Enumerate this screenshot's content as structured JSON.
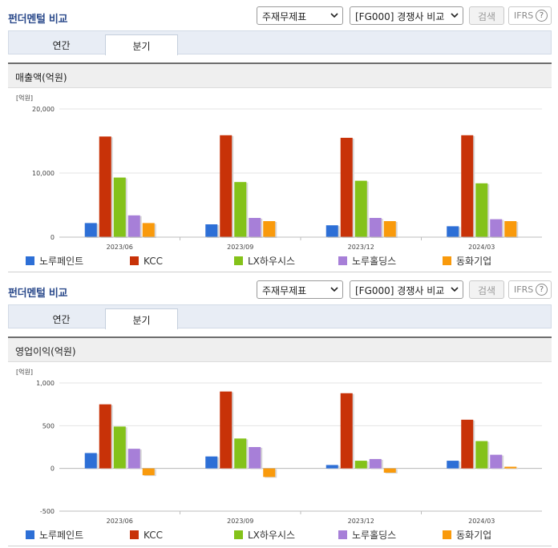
{
  "sections": [
    {
      "title": "펀더멘털 비교",
      "select1": "주재무제표",
      "select2": "[FG000] 경쟁사 비교",
      "search_label": "검색",
      "ifrs_label": "IFRS",
      "help_glyph": "?",
      "tabs": [
        "연간",
        "분기"
      ],
      "active_tab": "분기",
      "subtitle": "매출액(억원)",
      "unit_label": "[억원]"
    },
    {
      "title": "펀더멘털 비교",
      "select1": "주재무제표",
      "select2": "[FG000] 경쟁사 비교",
      "search_label": "검색",
      "ifrs_label": "IFRS",
      "help_glyph": "?",
      "tabs": [
        "연간",
        "분기"
      ],
      "active_tab": "분기",
      "subtitle": "영업이익(억원)",
      "unit_label": "[억원]"
    }
  ],
  "colors": {
    "노루페인트": "#2d6fd6",
    "KCC": "#c83208",
    "LX하우시스": "#84c21a",
    "노루홀딩스": "#a77fd8",
    "동화기업": "#f99a0c"
  },
  "chart_data": [
    {
      "type": "bar",
      "categories": [
        "2023/06",
        "2023/09",
        "2023/12",
        "2024/03"
      ],
      "ylim": [
        0,
        20000
      ],
      "yticks": [
        "0",
        "10,000",
        "20,000"
      ],
      "legend_position": "bottom",
      "series": [
        {
          "name": "노루페인트",
          "values": [
            2200,
            2000,
            1850,
            1700
          ]
        },
        {
          "name": "KCC",
          "values": [
            15700,
            15900,
            15500,
            15900
          ]
        },
        {
          "name": "LX하우시스",
          "values": [
            9300,
            8600,
            8800,
            8400
          ]
        },
        {
          "name": "노루홀딩스",
          "values": [
            3400,
            3000,
            3000,
            2800
          ]
        },
        {
          "name": "동화기업",
          "values": [
            2200,
            2500,
            2500,
            2500
          ]
        }
      ]
    },
    {
      "type": "bar",
      "categories": [
        "2023/06",
        "2023/09",
        "2023/12",
        "2024/03"
      ],
      "ylim": [
        -500,
        1000
      ],
      "yticks": [
        "-500",
        "0",
        "500",
        "1,000"
      ],
      "legend_position": "bottom",
      "series": [
        {
          "name": "노루페인트",
          "values": [
            180,
            140,
            40,
            90
          ]
        },
        {
          "name": "KCC",
          "values": [
            750,
            900,
            880,
            570
          ]
        },
        {
          "name": "LX하우시스",
          "values": [
            490,
            350,
            90,
            320
          ]
        },
        {
          "name": "노루홀딩스",
          "values": [
            230,
            250,
            110,
            160
          ]
        },
        {
          "name": "동화기업",
          "values": [
            -80,
            -100,
            -50,
            20
          ]
        }
      ]
    }
  ]
}
